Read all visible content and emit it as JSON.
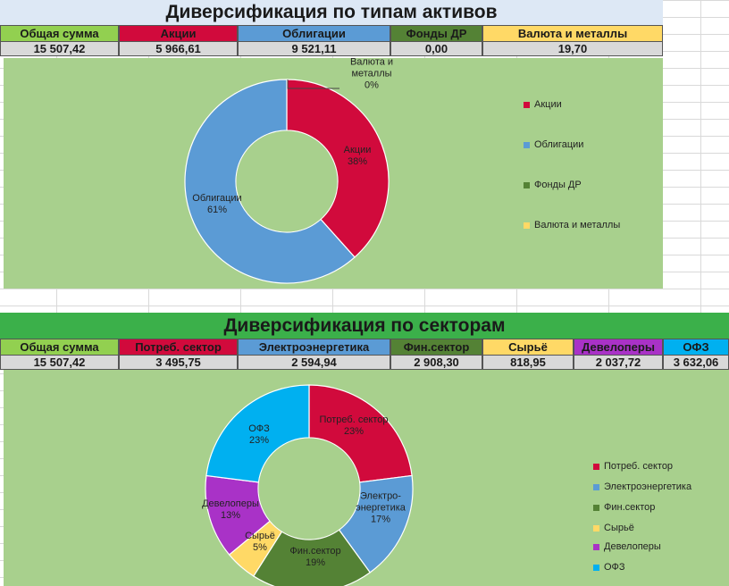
{
  "section1": {
    "title": "Диверсификация по типам активов",
    "headers": [
      {
        "label": "Общая сумма",
        "color": "#92d050"
      },
      {
        "label": "Акции",
        "color": "#d10a3c"
      },
      {
        "label": "Облигации",
        "color": "#5b9bd5"
      },
      {
        "label": "Фонды ДР",
        "color": "#548235"
      },
      {
        "label": "Валюта и металлы",
        "color": "#ffd966"
      }
    ],
    "values": [
      "15 507,42",
      "5 966,61",
      "9 521,11",
      "0,00",
      "19,70"
    ]
  },
  "section2": {
    "title": "Диверсификация по секторам",
    "headers": [
      {
        "label": "Общая сумма",
        "color": "#92d050"
      },
      {
        "label": "Потреб. сектор",
        "color": "#d10a3c"
      },
      {
        "label": "Электроэнергетика",
        "color": "#5b9bd5"
      },
      {
        "label": "Фин.сектор",
        "color": "#548235"
      },
      {
        "label": "Сырьё",
        "color": "#ffd966"
      },
      {
        "label": "Девелоперы",
        "color": "#a932c7"
      },
      {
        "label": "ОФЗ",
        "color": "#00b0f0"
      }
    ],
    "values": [
      "15 507,42",
      "3 495,75",
      "2 594,94",
      "2 908,30",
      "818,95",
      "2 037,72",
      "3 632,06"
    ]
  },
  "chart_data": [
    {
      "type": "pie",
      "title": "",
      "categories": [
        "Акции",
        "Облигации",
        "Фонды ДР",
        "Валюта и металлы"
      ],
      "values": [
        38,
        61,
        0,
        0
      ],
      "value_labels": [
        "38%",
        "61%",
        "0%",
        "0%"
      ],
      "data_labels": [
        {
          "line1": "Акции",
          "line2": "38%"
        },
        {
          "line1": "Облигации",
          "line2": "61%"
        },
        null,
        {
          "line1": "Валюта и",
          "line2": "металлы",
          "line3": "0%"
        }
      ],
      "colors": [
        "#d10a3c",
        "#5b9bd5",
        "#548235",
        "#ffd966"
      ],
      "legend": [
        "Акции",
        "Облигации",
        "Фонды ДР",
        "Валюта и металлы"
      ],
      "legend_position": "right"
    },
    {
      "type": "pie",
      "title": "",
      "categories": [
        "Потреб. сектор",
        "Электроэнергетика",
        "Фин.сектор",
        "Сырьё",
        "Девелоперы",
        "ОФЗ"
      ],
      "values": [
        23,
        17,
        19,
        5,
        13,
        23
      ],
      "value_labels": [
        "23%",
        "17%",
        "19%",
        "5%",
        "13%",
        "23%"
      ],
      "data_labels": [
        {
          "line1": "Потреб. сектор",
          "line2": "23%"
        },
        {
          "line1": "Электро-",
          "line2": "энергетика",
          "line3": "17%"
        },
        {
          "line1": "Фин.сектор",
          "line2": "19%"
        },
        {
          "line1": "Сырьё",
          "line2": "5%"
        },
        {
          "line1": "Девелоперы",
          "line2": "13%"
        },
        {
          "line1": "ОФЗ",
          "line2": "23%"
        }
      ],
      "colors": [
        "#d10a3c",
        "#5b9bd5",
        "#548235",
        "#ffd966",
        "#a932c7",
        "#00b0f0"
      ],
      "legend": [
        "Потреб. сектор",
        "Электроэнергетика",
        "Фин.сектор",
        "Сырьё",
        "Девелоперы",
        "ОФЗ"
      ],
      "legend_position": "right"
    }
  ]
}
